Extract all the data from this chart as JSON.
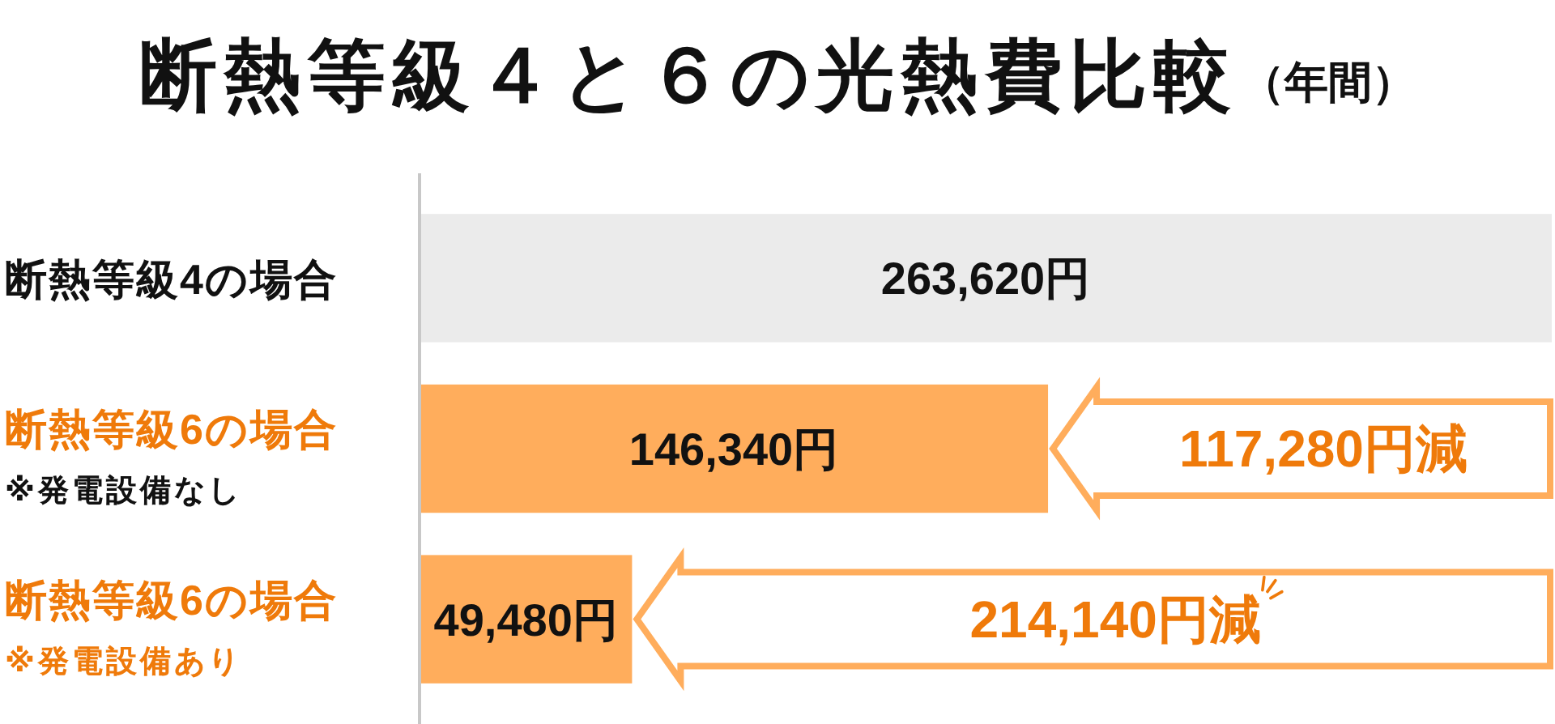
{
  "chart_data": {
    "type": "bar",
    "orientation": "horizontal",
    "title": "断熱等級４と６の光熱費比較",
    "subtitle": "（年間）",
    "categories": [
      "断熱等級4の場合",
      "断熱等級6の場合\n※発電設備なし",
      "断熱等級6の場合\n※発電設備あり"
    ],
    "values": [
      263620,
      146340,
      49480
    ],
    "colors": [
      "#ebebeb",
      "#ffad5c",
      "#ffad5c"
    ],
    "value_labels": [
      "263,620円",
      "146,340円",
      "49,480円"
    ],
    "annotations": [
      "117,280円減",
      "214,140円減"
    ]
  }
}
